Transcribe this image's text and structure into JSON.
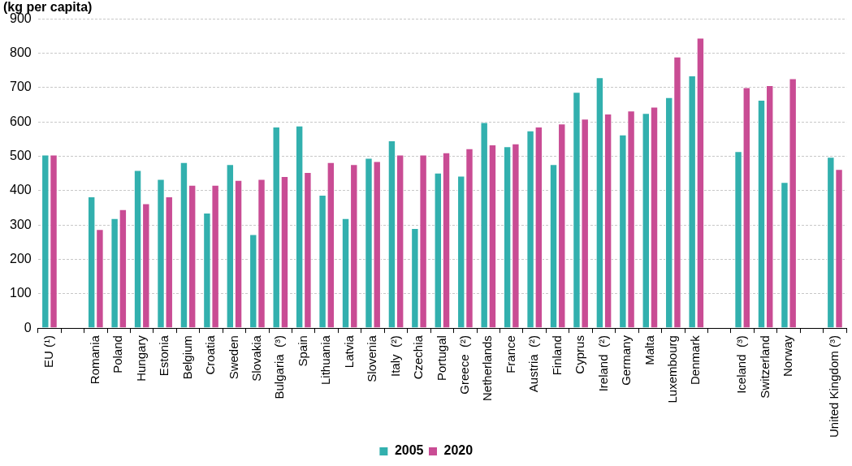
{
  "chart_data": {
    "type": "bar",
    "title": "(kg per capita)",
    "categories": [
      "EU (¹)",
      null,
      "Romania",
      "Poland",
      "Hungary",
      "Estonia",
      "Belgium",
      "Croatia",
      "Sweden",
      "Slovakia",
      "Bulgaria  (³)",
      "Spain",
      "Lithuania",
      "Latvia",
      "Slovenia",
      "Italy  (²)",
      "Czechia",
      "Portugal",
      "Greece  (²)",
      "Netherlands",
      "France",
      "Austria  (²)",
      "Finland",
      "Cyprus",
      "Ireland  (²)",
      "Germany",
      "Malta",
      "Luxembourg",
      "Denmark",
      null,
      "Iceland  (³)",
      "Switzerland",
      "Norway",
      null,
      "United Kingdom (³)"
    ],
    "series": [
      {
        "name": "2005",
        "color": "#32b0ae",
        "values": [
          505,
          null,
          383,
          320,
          460,
          434,
          483,
          336,
          477,
          273,
          586,
          589,
          388,
          320,
          495,
          546,
          291,
          452,
          443,
          599,
          529,
          575,
          477,
          687,
          730,
          563,
          626,
          672,
          735,
          null,
          515,
          664,
          425,
          null,
          498
        ]
      },
      {
        "name": "2020",
        "color": "#c94c94",
        "values": [
          505,
          null,
          288,
          346,
          363,
          383,
          417,
          417,
          431,
          434,
          442,
          454,
          483,
          477,
          486,
          505,
          505,
          511,
          523,
          534,
          537,
          586,
          595,
          609,
          624,
          633,
          644,
          790,
          845,
          null,
          701,
          707,
          727,
          null,
          463
        ]
      }
    ],
    "ylim": [
      0,
      900
    ],
    "yticks": [
      0,
      100,
      200,
      300,
      400,
      500,
      600,
      700,
      800,
      900
    ],
    "grid": "y",
    "legend": "bottom"
  }
}
